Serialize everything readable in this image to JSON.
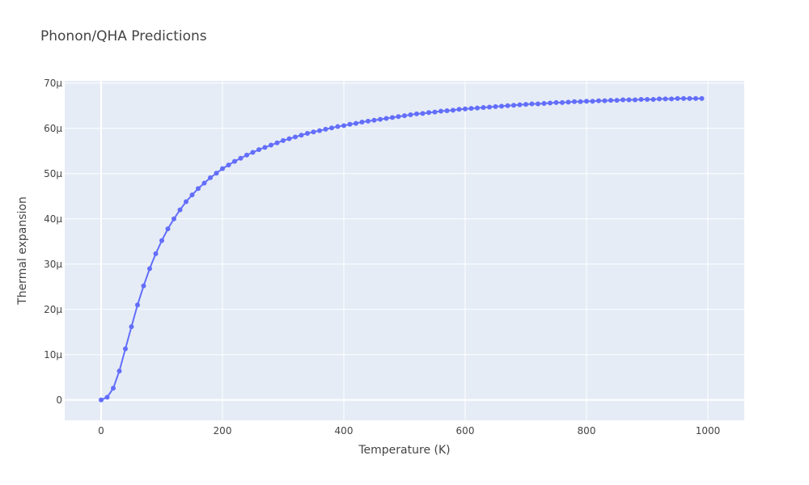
{
  "chart_data": {
    "type": "line",
    "title": "Phonon/QHA Predictions",
    "xlabel": "Temperature (K)",
    "ylabel": "Thermal expansion",
    "xlim": [
      -60,
      1060
    ],
    "ylim": [
      -4.5,
      70.5
    ],
    "x_ticks": [
      0,
      200,
      400,
      600,
      800,
      1000
    ],
    "x_tick_labels": [
      "0",
      "200",
      "400",
      "600",
      "800",
      "1000"
    ],
    "y_ticks": [
      0,
      10,
      20,
      30,
      40,
      50,
      60,
      70
    ],
    "y_tick_labels": [
      "0",
      "10μ",
      "20μ",
      "30μ",
      "40μ",
      "50μ",
      "60μ",
      "70μ"
    ],
    "y_unit": "μ",
    "grid": true,
    "legend": "none",
    "colors": {
      "plot_bg": "#e5ecf6",
      "grid": "#ffffff",
      "series": "#636efa",
      "text": "#444444"
    },
    "series": [
      {
        "x": [
          0,
          10,
          20,
          30,
          40,
          50,
          60,
          70,
          80,
          90,
          100,
          110,
          120,
          130,
          140,
          150,
          160,
          170,
          180,
          190,
          200,
          210,
          220,
          230,
          240,
          250,
          260,
          270,
          280,
          290,
          300,
          310,
          320,
          330,
          340,
          350,
          360,
          370,
          380,
          390,
          400,
          410,
          420,
          430,
          440,
          450,
          460,
          470,
          480,
          490,
          500,
          510,
          520,
          530,
          540,
          550,
          560,
          570,
          580,
          590,
          600,
          610,
          620,
          630,
          640,
          650,
          660,
          670,
          680,
          690,
          700,
          710,
          720,
          730,
          740,
          750,
          760,
          770,
          780,
          790,
          800,
          810,
          820,
          830,
          840,
          850,
          860,
          870,
          880,
          890,
          900,
          910,
          920,
          930,
          940,
          950,
          960,
          970,
          980,
          990
        ],
        "values": [
          0,
          0.6,
          2.6,
          6.4,
          11.3,
          16.2,
          21.0,
          25.2,
          29.0,
          32.3,
          35.2,
          37.8,
          40.0,
          42.0,
          43.8,
          45.3,
          46.7,
          47.9,
          49.1,
          50.1,
          51.1,
          51.9,
          52.7,
          53.4,
          54.1,
          54.7,
          55.3,
          55.8,
          56.3,
          56.8,
          57.3,
          57.7,
          58.1,
          58.5,
          58.9,
          59.2,
          59.5,
          59.8,
          60.1,
          60.4,
          60.6,
          60.9,
          61.1,
          61.4,
          61.6,
          61.8,
          62.0,
          62.2,
          62.4,
          62.6,
          62.8,
          63.0,
          63.2,
          63.3,
          63.5,
          63.6,
          63.8,
          63.9,
          64.0,
          64.2,
          64.3,
          64.4,
          64.5,
          64.6,
          64.7,
          64.8,
          64.9,
          65.0,
          65.1,
          65.2,
          65.3,
          65.4,
          65.4,
          65.5,
          65.6,
          65.7,
          65.7,
          65.8,
          65.9,
          65.9,
          66.0,
          66.0,
          66.1,
          66.1,
          66.2,
          66.2,
          66.3,
          66.3,
          66.3,
          66.4,
          66.4,
          66.4,
          66.5,
          66.5,
          66.5,
          66.6,
          66.6,
          66.6,
          66.6,
          66.6
        ]
      }
    ]
  }
}
